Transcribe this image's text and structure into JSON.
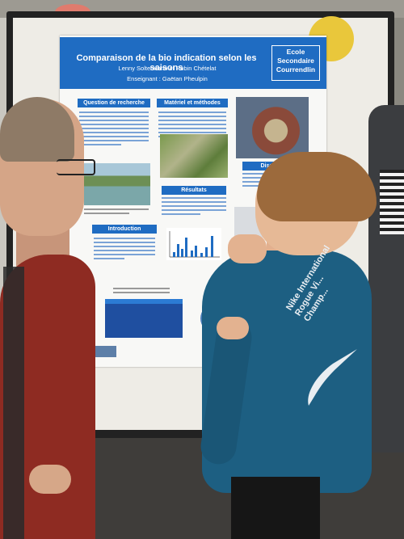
{
  "scene": "science-fair-poster",
  "poster": {
    "title": "Comparaison de la bio indication selon les saisons",
    "school": [
      "Ecole",
      "Secondaire",
      "Courrendlin"
    ],
    "authors": "Lenny Soltermann et Robin Chételat",
    "teacher": "Enseignant : Gaëtan Pheulpin",
    "sections": {
      "question": "Question de recherche",
      "methods": "Matériel et méthodes",
      "results": "Résultats",
      "discussion": "Discussio",
      "intro": "Introduction"
    }
  },
  "shirt_text": [
    "Nike International",
    "Rogue Vi...",
    "Champ..."
  ],
  "colors": {
    "poster_blue": "#1f6cc2",
    "board_yellow": "#e9c73b",
    "man_shirt": "#8e2b22",
    "boy_shirt": "#1d5f82"
  }
}
